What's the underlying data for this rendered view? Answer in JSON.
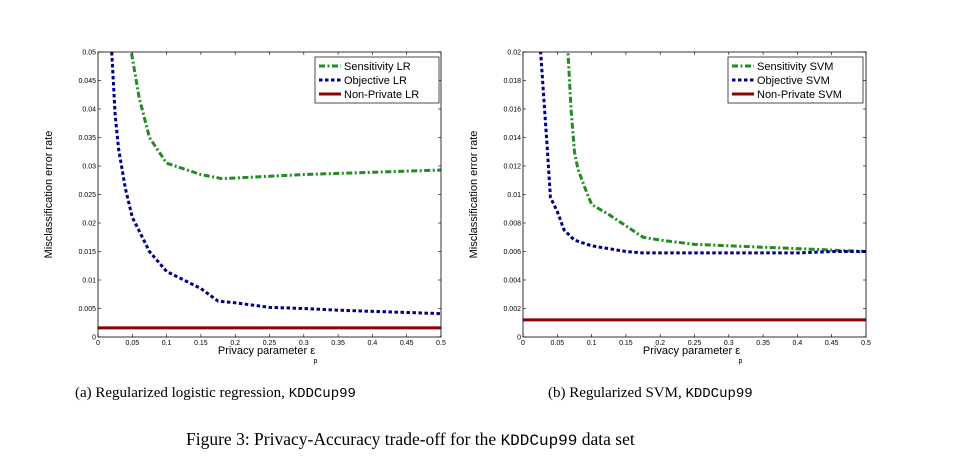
{
  "colors": {
    "sensitivity": "#228B22",
    "objective": "#00008B",
    "nonprivate": "#8B0000"
  },
  "chart_data": [
    {
      "type": "line",
      "xlabel_main": "Privacy parameter ε",
      "xlabel_sub": "p",
      "ylabel": "Misclassification error rate",
      "xlim": [
        0,
        0.5
      ],
      "ylim": [
        0,
        0.05
      ],
      "xticks": [
        "0",
        "0.05",
        "0.1",
        "0.15",
        "0.2",
        "0.25",
        "0.3",
        "0.35",
        "0.4",
        "0.45",
        "0.5"
      ],
      "yticks": [
        "0",
        "0.005",
        "0.01",
        "0.015",
        "0.02",
        "0.025",
        "0.03",
        "0.035",
        "0.04",
        "0.045",
        "0.05"
      ],
      "legend_position": "top-right",
      "series": [
        {
          "name": "Sensitivity LR",
          "style": "dashdot",
          "color": "#228B22",
          "x": [
            0.045,
            0.05,
            0.06,
            0.075,
            0.1,
            0.15,
            0.18,
            0.2,
            0.25,
            0.3,
            0.35,
            0.4,
            0.45,
            0.5
          ],
          "y": [
            0.052,
            0.049,
            0.042,
            0.035,
            0.0305,
            0.0285,
            0.0278,
            0.0279,
            0.0282,
            0.0285,
            0.0287,
            0.0289,
            0.0291,
            0.0293
          ]
        },
        {
          "name": "Objective LR",
          "style": "dotted",
          "color": "#00008B",
          "x": [
            0.02,
            0.025,
            0.03,
            0.04,
            0.05,
            0.075,
            0.1,
            0.15,
            0.175,
            0.2,
            0.25,
            0.3,
            0.35,
            0.4,
            0.45,
            0.5
          ],
          "y": [
            0.05,
            0.039,
            0.033,
            0.026,
            0.021,
            0.015,
            0.0115,
            0.0085,
            0.0063,
            0.006,
            0.0052,
            0.005,
            0.0047,
            0.0045,
            0.0043,
            0.0041
          ]
        },
        {
          "name": "Non-Private LR",
          "style": "solid",
          "color": "#8B0000",
          "x": [
            0,
            0.5
          ],
          "y": [
            0.0016,
            0.0016
          ]
        }
      ]
    },
    {
      "type": "line",
      "xlabel_main": "Privacy parameter ε",
      "xlabel_sub": "p",
      "ylabel": "Misclassification error rate",
      "xlim": [
        0,
        0.5
      ],
      "ylim": [
        0,
        0.02
      ],
      "xticks": [
        "0",
        "0.05",
        "0.1",
        "0.15",
        "0.2",
        "0.25",
        "0.3",
        "0.35",
        "0.4",
        "0.45",
        "0.5"
      ],
      "yticks": [
        "0",
        "0.002",
        "0.004",
        "0.006",
        "0.008",
        "0.01",
        "0.012",
        "0.014",
        "0.016",
        "0.018",
        "0.02"
      ],
      "legend_position": "top-right",
      "series": [
        {
          "name": "Sensitivity SVM",
          "style": "dashdot",
          "color": "#228B22",
          "x": [
            0.065,
            0.07,
            0.075,
            0.08,
            0.09,
            0.1,
            0.125,
            0.15,
            0.175,
            0.2,
            0.25,
            0.3,
            0.35,
            0.4,
            0.45,
            0.5
          ],
          "y": [
            0.0205,
            0.016,
            0.013,
            0.0118,
            0.0105,
            0.0093,
            0.0086,
            0.0078,
            0.007,
            0.0068,
            0.0065,
            0.0064,
            0.0063,
            0.0062,
            0.0061,
            0.006
          ]
        },
        {
          "name": "Objective SVM",
          "style": "dotted",
          "color": "#00008B",
          "x": [
            0.025,
            0.03,
            0.035,
            0.04,
            0.05,
            0.06,
            0.075,
            0.1,
            0.125,
            0.15,
            0.175,
            0.2,
            0.25,
            0.3,
            0.35,
            0.4,
            0.45,
            0.5
          ],
          "y": [
            0.0205,
            0.017,
            0.0135,
            0.0098,
            0.0088,
            0.0075,
            0.0068,
            0.0064,
            0.0062,
            0.006,
            0.0059,
            0.0059,
            0.0059,
            0.0059,
            0.0059,
            0.0059,
            0.006,
            0.006
          ]
        },
        {
          "name": "Non-Private SVM",
          "style": "solid",
          "color": "#8B0000",
          "x": [
            0,
            0.5
          ],
          "y": [
            0.0012,
            0.0012
          ]
        }
      ]
    }
  ],
  "captions": {
    "a_prefix": "(a)  Regularized logistic regression, ",
    "a_code": "KDDCup99",
    "b_prefix": "(b)  Regularized SVM, ",
    "b_code": "KDDCup99",
    "figure_prefix": "Figure 3: Privacy-Accuracy trade-off for the ",
    "figure_code": "KDDCup99",
    "figure_suffix": " data set"
  }
}
